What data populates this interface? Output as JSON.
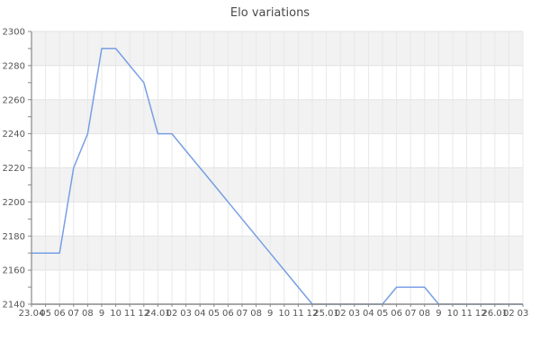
{
  "chart_data": {
    "type": "line",
    "title": "Elo variations",
    "legend": "none",
    "grid": true,
    "x_tick_labels": [
      "23.04",
      "05",
      "06",
      "07",
      "08",
      "9",
      "10",
      "11",
      "12",
      "24.01",
      "02",
      "03",
      "04",
      "05",
      "06",
      "07",
      "08",
      "9",
      "10",
      "11",
      "12",
      "25.01",
      "02",
      "03",
      "04",
      "05",
      "06",
      "07",
      "08",
      "9",
      "10",
      "11",
      "12",
      "26.01",
      "02",
      "03"
    ],
    "y_tick_labels": [
      "2300",
      "2280",
      "2260",
      "2240",
      "2220",
      "2200",
      "2180",
      "2160",
      "2140"
    ],
    "ylim": [
      2140,
      2300
    ],
    "y_major_step": 20,
    "y_minor_step": 10,
    "series": [
      {
        "name": "Elo",
        "values": [
          2170,
          2170,
          2170,
          2220,
          2240,
          2290,
          2290,
          2280,
          2270,
          2240,
          2240,
          2230,
          2220,
          2210,
          2200,
          2190,
          2180,
          2170,
          2160,
          2150,
          2140,
          2140,
          2140,
          2140,
          2140,
          2140,
          2150,
          2150,
          2150,
          2140,
          2140,
          2140,
          2140,
          2140,
          2140,
          2140
        ]
      }
    ],
    "colors": {
      "line": "#779fe5",
      "band": "#f2f2f2",
      "grid_vertical": "#e8e8e8",
      "grid_horizontal": "#e3e3e3",
      "axis": "#888888",
      "tick": "#888888",
      "text": "#555555",
      "title": "#4a4a4a",
      "background": "#ffffff"
    }
  }
}
